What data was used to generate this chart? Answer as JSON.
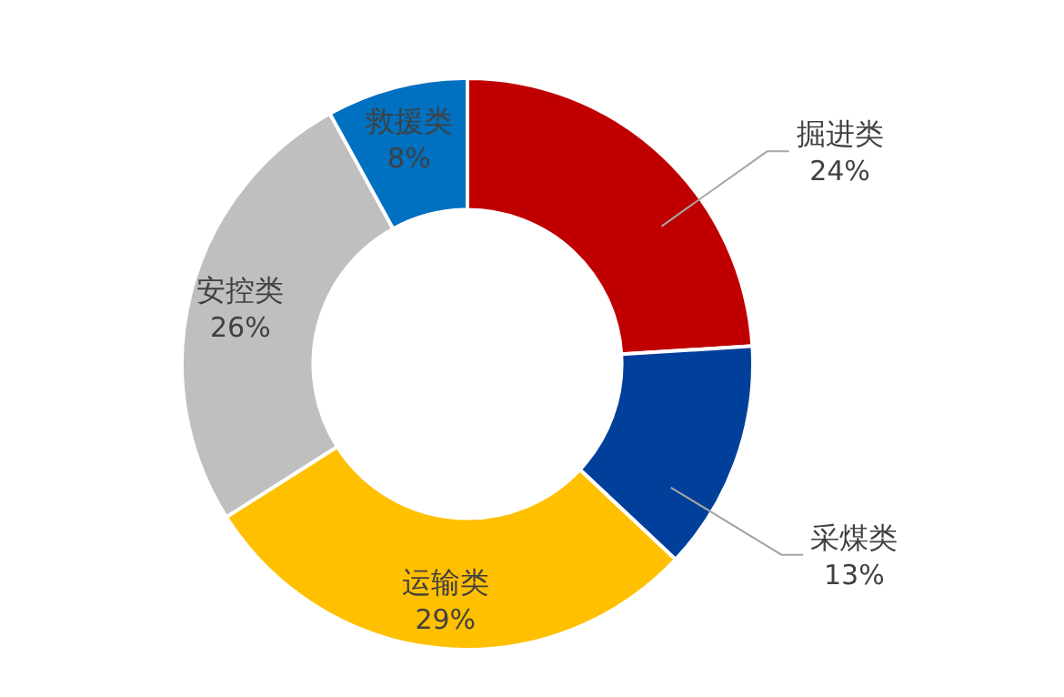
{
  "chart_data": {
    "type": "donut",
    "categories": [
      "掘进类",
      "采煤类",
      "运输类",
      "安控类",
      "救援类"
    ],
    "values": [
      24,
      13,
      29,
      26,
      8
    ],
    "value_labels": [
      "24%",
      "13%",
      "29%",
      "26%",
      "8%"
    ],
    "colors": [
      "#c00000",
      "#003f9a",
      "#ffc000",
      "#bfbfbf",
      "#0070c0"
    ]
  }
}
